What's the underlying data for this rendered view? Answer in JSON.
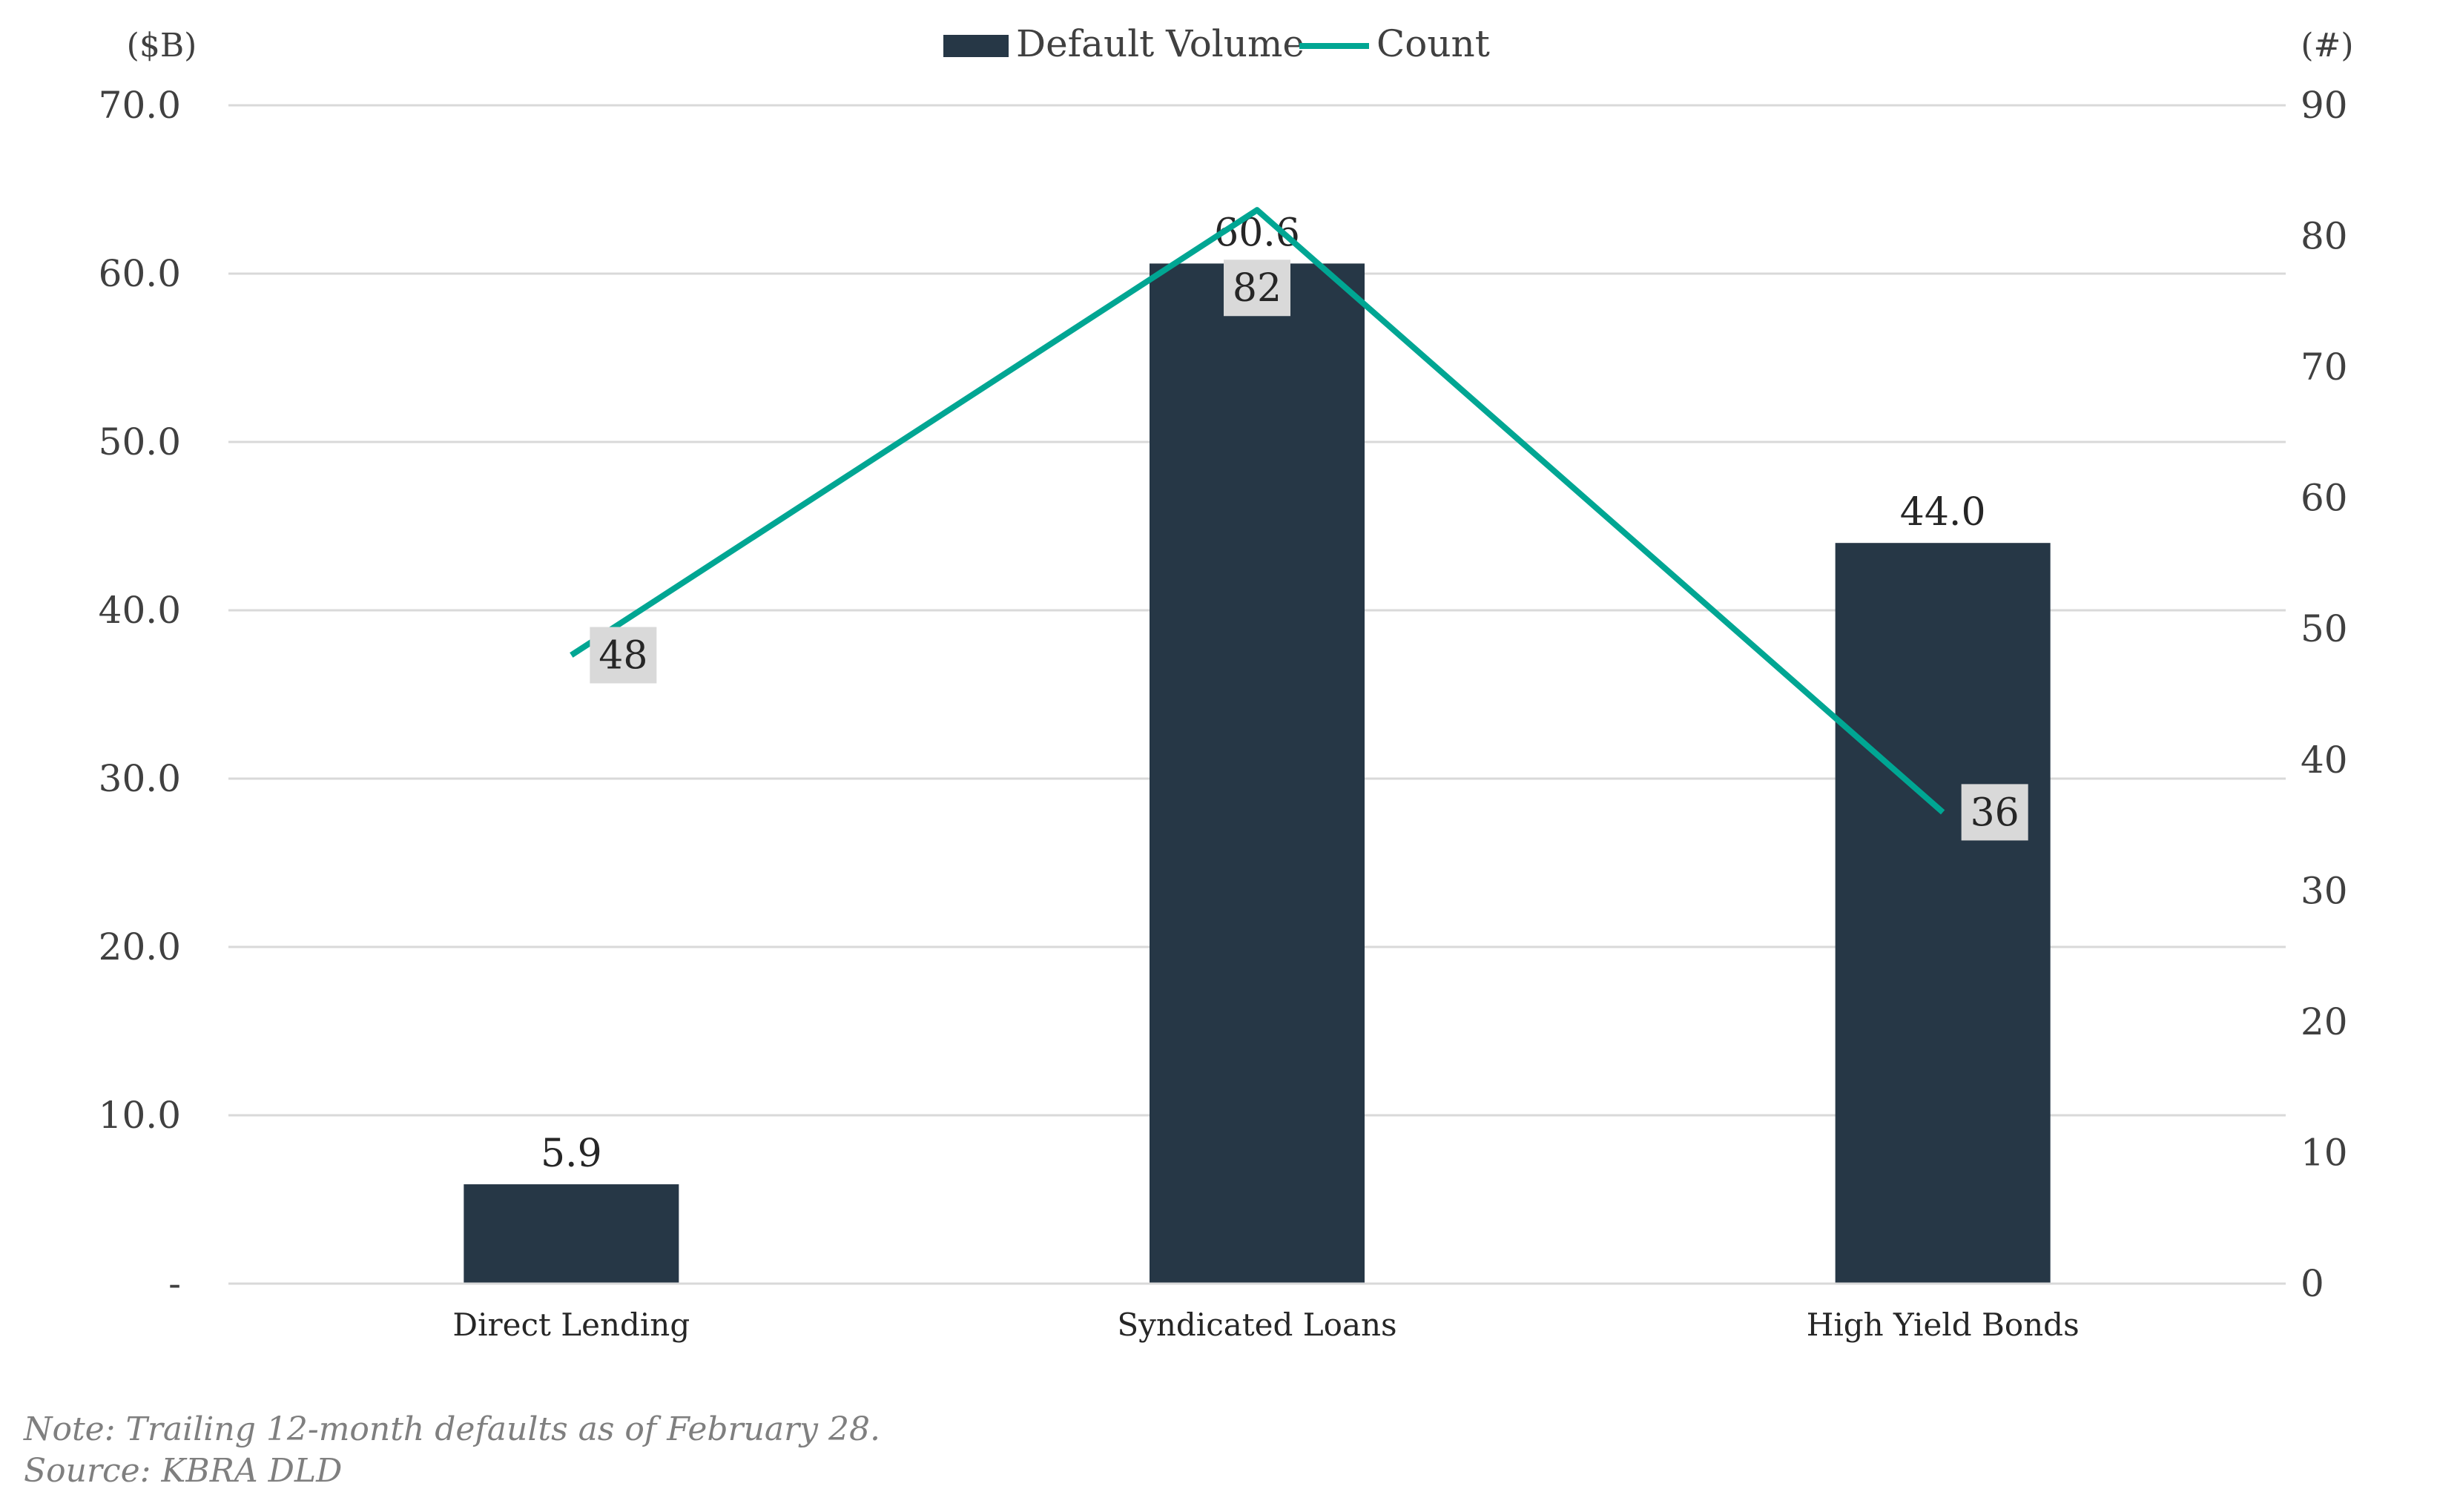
{
  "chart_data": {
    "type": "bar",
    "categories": [
      "Direct Lending",
      "Syndicated Loans",
      "High Yield Bonds"
    ],
    "series": [
      {
        "name": "Default Volume",
        "type": "bar",
        "axis": "left",
        "values": [
          5.9,
          60.6,
          44.0
        ],
        "labels": [
          "5.9",
          "60.6",
          "44.0"
        ],
        "color": "#263746"
      },
      {
        "name": "Count",
        "type": "line",
        "axis": "right",
        "values": [
          48,
          82,
          36
        ],
        "labels": [
          "48",
          "82",
          "36"
        ],
        "color": "#00a693"
      }
    ],
    "left_axis": {
      "unit_label": "($B)",
      "ylim": [
        0,
        70
      ],
      "ticks": [
        0,
        10,
        20,
        30,
        40,
        50,
        60,
        70
      ],
      "tick_labels": [
        "-",
        "10.0",
        "20.0",
        "30.0",
        "40.0",
        "50.0",
        "60.0",
        "70.0"
      ]
    },
    "right_axis": {
      "unit_label": "(#)",
      "ylim": [
        0,
        90
      ],
      "ticks": [
        0,
        10,
        20,
        30,
        40,
        50,
        60,
        70,
        80,
        90
      ],
      "tick_labels": [
        "0",
        "10",
        "20",
        "30",
        "40",
        "50",
        "60",
        "70",
        "80",
        "90"
      ]
    },
    "grid": true,
    "legend": "top-center",
    "title": "",
    "xlabel": ""
  },
  "notes": {
    "note": "Note: Trailing 12-month defaults as of February 28.",
    "source": "Source: KBRA DLD"
  }
}
